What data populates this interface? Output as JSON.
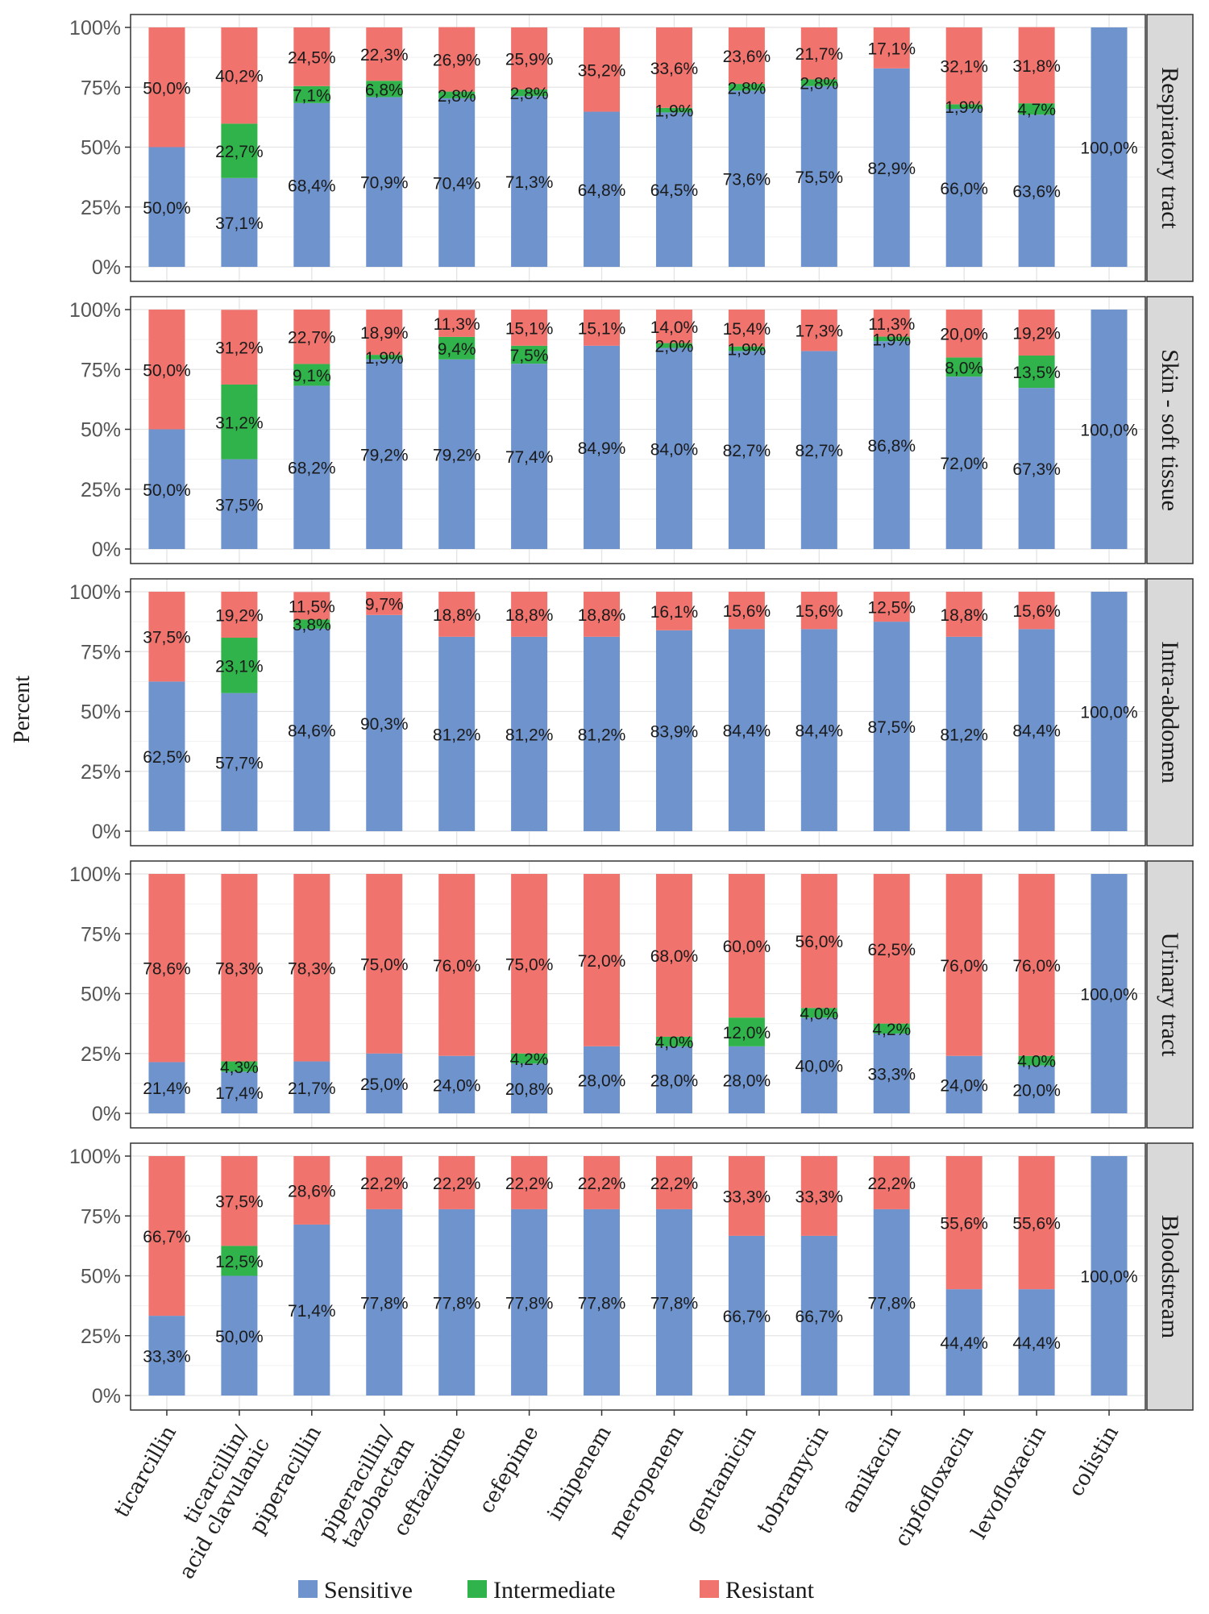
{
  "chart_data": {
    "type": "bar",
    "stacked": true,
    "facet_direction": "rows",
    "ylabel": "Percent",
    "ylim": [
      0,
      100
    ],
    "yticks": [
      "0%",
      "25%",
      "50%",
      "75%",
      "100%"
    ],
    "grid": true,
    "legend_position": "bottom",
    "categories": [
      "ticarcillin",
      "ticarcillin/\nacid clavulanic",
      "piperacillin",
      "piperacillin/\ntazobactam",
      "ceftazidime",
      "cefepime",
      "imipenem",
      "meropenem",
      "gentamicin",
      "tobramycin",
      "amikacin",
      "cipfofloxacin",
      "levofloxacin",
      "colistin"
    ],
    "series_names": [
      "Sensitive",
      "Intermediate",
      "Resistant"
    ],
    "colors": {
      "Sensitive": "#6f94cd",
      "Intermediate": "#2fb34a",
      "Resistant": "#f0736e"
    },
    "panels": [
      {
        "name": "Respiratory tract",
        "sensitive": [
          50.0,
          37.1,
          68.4,
          70.9,
          70.4,
          71.3,
          64.8,
          64.5,
          73.6,
          75.5,
          82.9,
          66.0,
          63.6,
          100.0
        ],
        "intermediate": [
          0,
          22.7,
          7.1,
          6.8,
          2.8,
          2.8,
          0,
          1.9,
          2.8,
          2.8,
          0,
          1.9,
          4.7,
          0
        ],
        "resistant": [
          50.0,
          40.2,
          24.5,
          22.3,
          26.9,
          25.9,
          35.2,
          33.6,
          23.6,
          21.7,
          17.1,
          32.1,
          31.8,
          0
        ],
        "sensitive_labels": [
          "50,0%",
          "37,1%",
          "68,4%",
          "70,9%",
          "70,4%",
          "71,3%",
          "64,8%",
          "64,5%",
          "73,6%",
          "75,5%",
          "82,9%",
          "66,0%",
          "63,6%",
          "100,0%"
        ],
        "intermediate_labels": [
          "",
          "22,7%",
          "7,1%",
          "6,8%",
          "2,8%",
          "2,8%",
          "",
          "1,9%",
          "2,8%",
          "2,8%",
          "",
          "1,9%",
          "4,7%",
          ""
        ],
        "resistant_labels": [
          "50,0%",
          "40,2%",
          "24,5%",
          "22,3%",
          "26,9%",
          "25,9%",
          "35,2%",
          "33,6%",
          "23,6%",
          "21,7%",
          "17,1%",
          "32,1%",
          "31,8%",
          ""
        ]
      },
      {
        "name": "Skin - soft tissue",
        "sensitive": [
          50.0,
          37.5,
          68.2,
          79.2,
          79.2,
          77.4,
          84.9,
          84.0,
          82.7,
          82.7,
          86.8,
          72.0,
          67.3,
          100.0
        ],
        "intermediate": [
          0,
          31.2,
          9.1,
          1.9,
          9.4,
          7.5,
          0,
          2.0,
          1.9,
          0,
          1.9,
          8.0,
          13.5,
          0
        ],
        "resistant": [
          50.0,
          31.2,
          22.7,
          18.9,
          11.3,
          15.1,
          15.1,
          14.0,
          15.4,
          17.3,
          11.3,
          20.0,
          19.2,
          0
        ],
        "sensitive_labels": [
          "50,0%",
          "37,5%",
          "68,2%",
          "79,2%",
          "79,2%",
          "77,4%",
          "84,9%",
          "84,0%",
          "82,7%",
          "82,7%",
          "86,8%",
          "72,0%",
          "67,3%",
          "100,0%"
        ],
        "intermediate_labels": [
          "",
          "31,2%",
          "9,1%",
          "1,9%",
          "9,4%",
          "7,5%",
          "",
          "2,0%",
          "1,9%",
          "",
          "1,9%",
          "8,0%",
          "13,5%",
          ""
        ],
        "resistant_labels": [
          "50,0%",
          "31,2%",
          "22,7%",
          "18,9%",
          "11,3%",
          "15,1%",
          "15,1%",
          "14,0%",
          "15,4%",
          "17,3%",
          "11,3%",
          "20,0%",
          "19,2%",
          ""
        ]
      },
      {
        "name": "Intra-abdomen",
        "sensitive": [
          62.5,
          57.7,
          84.6,
          90.3,
          81.2,
          81.2,
          81.2,
          83.9,
          84.4,
          84.4,
          87.5,
          81.2,
          84.4,
          100.0
        ],
        "intermediate": [
          0,
          23.1,
          3.8,
          0,
          0,
          0,
          0,
          0,
          0,
          0,
          0,
          0,
          0,
          0
        ],
        "resistant": [
          37.5,
          19.2,
          11.5,
          9.7,
          18.8,
          18.8,
          18.8,
          16.1,
          15.6,
          15.6,
          12.5,
          18.8,
          15.6,
          0
        ],
        "sensitive_labels": [
          "62,5%",
          "57,7%",
          "84,6%",
          "90,3%",
          "81,2%",
          "81,2%",
          "81,2%",
          "83,9%",
          "84,4%",
          "84,4%",
          "87,5%",
          "81,2%",
          "84,4%",
          "100,0%"
        ],
        "intermediate_labels": [
          "",
          "23,1%",
          "3,8%",
          "",
          "",
          "",
          "",
          "",
          "",
          "",
          "",
          "",
          "",
          ""
        ],
        "resistant_labels": [
          "37,5%",
          "19,2%",
          "11,5%",
          "9,7%",
          "18,8%",
          "18,8%",
          "18,8%",
          "16,1%",
          "15,6%",
          "15,6%",
          "12,5%",
          "18,8%",
          "15,6%",
          ""
        ]
      },
      {
        "name": "Urinary tract",
        "sensitive": [
          21.4,
          17.4,
          21.7,
          25.0,
          24.0,
          20.8,
          28.0,
          28.0,
          28.0,
          40.0,
          33.3,
          24.0,
          20.0,
          100.0
        ],
        "intermediate": [
          0,
          4.3,
          0,
          0,
          0,
          4.2,
          0,
          4.0,
          12.0,
          4.0,
          4.2,
          0,
          4.0,
          0
        ],
        "resistant": [
          78.6,
          78.3,
          78.3,
          75.0,
          76.0,
          75.0,
          72.0,
          68.0,
          60.0,
          56.0,
          62.5,
          76.0,
          76.0,
          0
        ],
        "sensitive_labels": [
          "21,4%",
          "17,4%",
          "21,7%",
          "25,0%",
          "24,0%",
          "20,8%",
          "28,0%",
          "28,0%",
          "28,0%",
          "40,0%",
          "33,3%",
          "24,0%",
          "20,0%",
          "100,0%"
        ],
        "intermediate_labels": [
          "",
          "4,3%",
          "",
          "",
          "",
          "4,2%",
          "",
          "4,0%",
          "12,0%",
          "4,0%",
          "4,2%",
          "",
          "4,0%",
          ""
        ],
        "resistant_labels": [
          "78,6%",
          "78,3%",
          "78,3%",
          "75,0%",
          "76,0%",
          "75,0%",
          "72,0%",
          "68,0%",
          "60,0%",
          "56,0%",
          "62,5%",
          "76,0%",
          "76,0%",
          ""
        ]
      },
      {
        "name": "Bloodstream",
        "sensitive": [
          33.3,
          50.0,
          71.4,
          77.8,
          77.8,
          77.8,
          77.8,
          77.8,
          66.7,
          66.7,
          77.8,
          44.4,
          44.4,
          100.0
        ],
        "intermediate": [
          0,
          12.5,
          0,
          0,
          0,
          0,
          0,
          0,
          0,
          0,
          0,
          0,
          0,
          0
        ],
        "resistant": [
          66.7,
          37.5,
          28.6,
          22.2,
          22.2,
          22.2,
          22.2,
          22.2,
          33.3,
          33.3,
          22.2,
          55.6,
          55.6,
          0
        ],
        "sensitive_labels": [
          "33,3%",
          "50,0%",
          "71,4%",
          "77,8%",
          "77,8%",
          "77,8%",
          "77,8%",
          "77,8%",
          "66,7%",
          "66,7%",
          "77,8%",
          "44,4%",
          "44,4%",
          "100,0%"
        ],
        "intermediate_labels": [
          "",
          "12,5%",
          "",
          "",
          "",
          "",
          "",
          "",
          "",
          "",
          "",
          "",
          "",
          ""
        ],
        "resistant_labels": [
          "66,7%",
          "37,5%",
          "28,6%",
          "22,2%",
          "22,2%",
          "22,2%",
          "22,2%",
          "22,2%",
          "33,3%",
          "33,3%",
          "22,2%",
          "55,6%",
          "55,6%",
          ""
        ]
      }
    ]
  }
}
